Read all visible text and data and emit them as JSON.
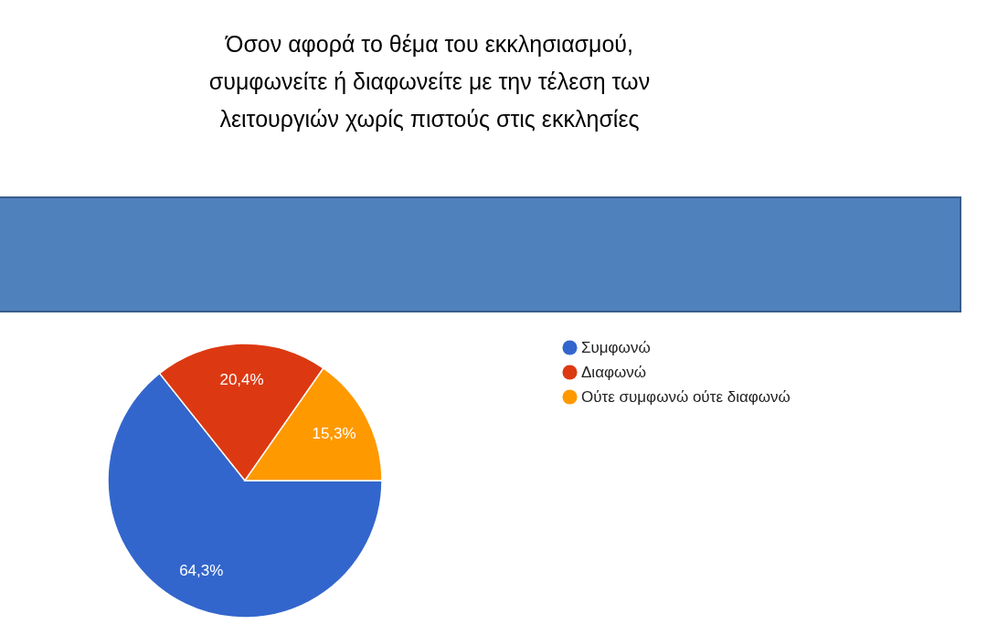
{
  "chart_data": {
    "type": "pie",
    "title": "Όσον αφορά το θέμα του εκκλησιασμού, συμφωνείτε ή διαφωνείτε με την τέλεση των λειτουργιών χωρίς πιστούς στις εκκλησίες",
    "categories": [
      "Συμφωνώ",
      "Διαφωνώ",
      "Ούτε συμφωνώ ούτε διαφωνώ"
    ],
    "values": [
      64.3,
      20.4,
      15.3
    ],
    "colors": [
      "#3366cc",
      "#dc3912",
      "#ff9900"
    ],
    "value_labels": [
      "64,3%",
      "20,4%",
      "15,3%"
    ],
    "legend": "right"
  }
}
